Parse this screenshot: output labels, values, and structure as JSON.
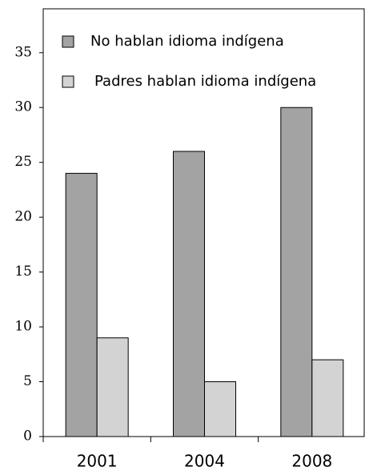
{
  "chart_data": {
    "type": "bar",
    "categories": [
      "2001",
      "2004",
      "2008"
    ],
    "series": [
      {
        "name": "No hablan idioma indígena",
        "color": "#a3a3a3",
        "values": [
          24,
          26,
          30
        ]
      },
      {
        "name": "Padres hablan idioma indígena",
        "color": "#d3d3d3",
        "values": [
          9,
          5,
          7
        ]
      }
    ],
    "ylim": [
      0,
      39
    ],
    "yticks": [
      0,
      5,
      10,
      15,
      20,
      25,
      30,
      35
    ],
    "legend": "upper left"
  }
}
